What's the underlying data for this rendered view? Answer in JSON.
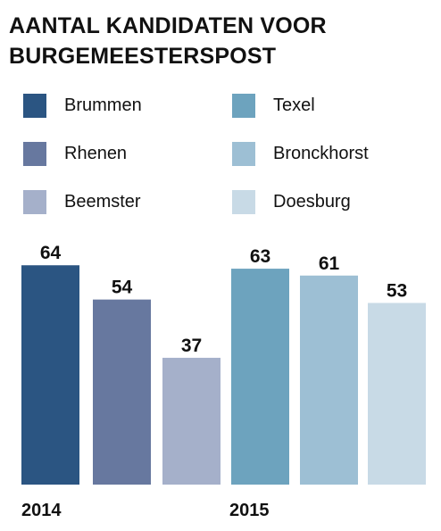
{
  "title_lines": [
    "AANTAL KANDIDATEN VOOR",
    "BURGEMEESTERSPOST"
  ],
  "chart_data": {
    "type": "bar",
    "title": "AANTAL KANDIDATEN VOOR BURGEMEESTERSPOST",
    "groups": [
      {
        "label": "2014",
        "bars": [
          {
            "name": "Brummen",
            "value": 64,
            "color": "#2b5582"
          },
          {
            "name": "Rhenen",
            "value": 54,
            "color": "#67789f"
          },
          {
            "name": "Beemster",
            "value": 37,
            "color": "#a5b0ca"
          }
        ]
      },
      {
        "label": "2015",
        "bars": [
          {
            "name": "Texel",
            "value": 63,
            "color": "#6da3be"
          },
          {
            "name": "Bronckhorst",
            "value": 61,
            "color": "#9dbfd4"
          },
          {
            "name": "Doesburg",
            "value": 53,
            "color": "#c8dae6"
          }
        ]
      }
    ],
    "legend": [
      {
        "name": "Brummen",
        "color": "#2b5582"
      },
      {
        "name": "Texel",
        "color": "#6da3be"
      },
      {
        "name": "Rhenen",
        "color": "#67789f"
      },
      {
        "name": "Bronckhorst",
        "color": "#9dbfd4"
      },
      {
        "name": "Beemster",
        "color": "#a5b0ca"
      },
      {
        "name": "Doesburg",
        "color": "#c8dae6"
      }
    ],
    "legend_placement": "top",
    "grid": false,
    "ylim": [
      0,
      64
    ]
  }
}
